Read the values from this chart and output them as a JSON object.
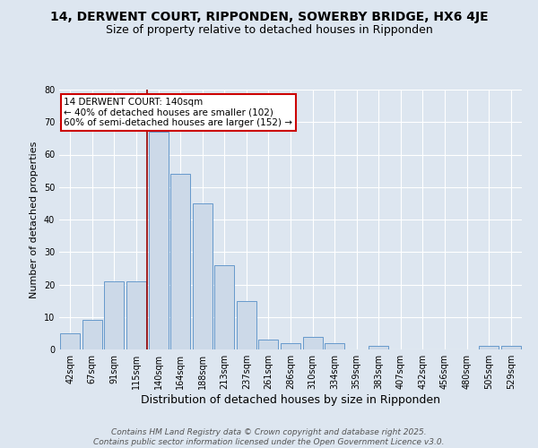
{
  "title": "14, DERWENT COURT, RIPPONDEN, SOWERBY BRIDGE, HX6 4JE",
  "subtitle": "Size of property relative to detached houses in Ripponden",
  "xlabel": "Distribution of detached houses by size in Ripponden",
  "ylabel": "Number of detached properties",
  "categories": [
    "42sqm",
    "67sqm",
    "91sqm",
    "115sqm",
    "140sqm",
    "164sqm",
    "188sqm",
    "213sqm",
    "237sqm",
    "261sqm",
    "286sqm",
    "310sqm",
    "334sqm",
    "359sqm",
    "383sqm",
    "407sqm",
    "432sqm",
    "456sqm",
    "480sqm",
    "505sqm",
    "529sqm"
  ],
  "values": [
    5,
    9,
    21,
    21,
    67,
    54,
    45,
    26,
    15,
    3,
    2,
    4,
    2,
    0,
    1,
    0,
    0,
    0,
    0,
    1,
    1
  ],
  "bar_color": "#ccd9e8",
  "bar_edge_color": "#6699cc",
  "vline_x_index": 4,
  "vline_color": "#990000",
  "annotation_text": "14 DERWENT COURT: 140sqm\n← 40% of detached houses are smaller (102)\n60% of semi-detached houses are larger (152) →",
  "annotation_box_facecolor": "#ffffff",
  "annotation_box_edgecolor": "#cc0000",
  "ylim": [
    0,
    80
  ],
  "yticks": [
    0,
    10,
    20,
    30,
    40,
    50,
    60,
    70,
    80
  ],
  "background_color": "#dde6f0",
  "grid_color": "#ffffff",
  "footer_text": "Contains HM Land Registry data © Crown copyright and database right 2025.\nContains public sector information licensed under the Open Government Licence v3.0.",
  "title_fontsize": 10,
  "subtitle_fontsize": 9,
  "xlabel_fontsize": 9,
  "ylabel_fontsize": 8,
  "tick_fontsize": 7,
  "annotation_fontsize": 7.5,
  "footer_fontsize": 6.5
}
